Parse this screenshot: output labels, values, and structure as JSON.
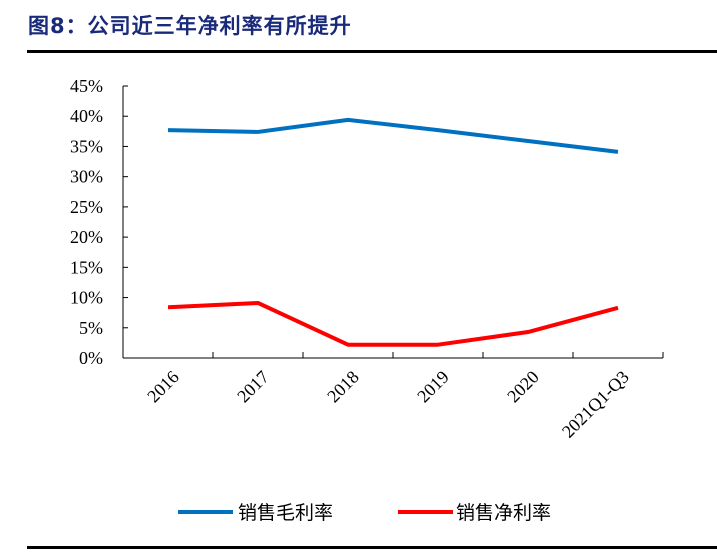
{
  "title": "图8：公司近三年净利率有所提升",
  "chart_data": {
    "type": "line",
    "title": "图8：公司近三年净利率有所提升",
    "categories": [
      "2016",
      "2017",
      "2018",
      "2019",
      "2020",
      "2021Q1-Q3"
    ],
    "series": [
      {
        "name": "销售毛利率",
        "color": "#0070c0",
        "values": [
          37.7,
          37.4,
          39.4,
          37.7,
          35.9,
          34.1
        ]
      },
      {
        "name": "销售净利率",
        "color": "#ff0000",
        "values": [
          8.4,
          9.1,
          2.2,
          2.2,
          4.3,
          8.3
        ]
      }
    ],
    "yticks": [
      "0%",
      "5%",
      "10%",
      "15%",
      "20%",
      "25%",
      "30%",
      "35%",
      "40%",
      "45%"
    ],
    "ylim": [
      0,
      45
    ],
    "xlabel": "",
    "ylabel": "",
    "grid": false,
    "legend_position": "bottom"
  }
}
